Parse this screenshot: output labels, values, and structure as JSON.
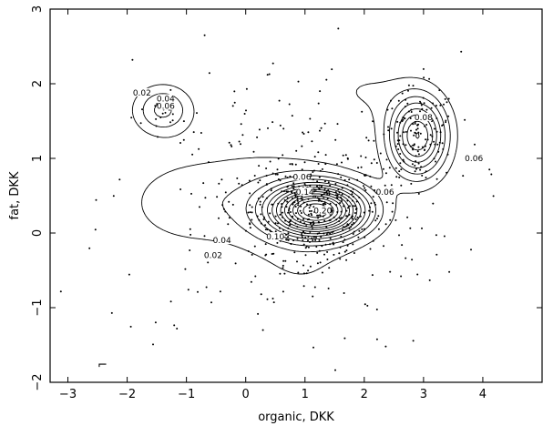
{
  "chart_data": {
    "type": "scatter",
    "title": "",
    "xlabel": "organic, DKK",
    "ylabel": "fat, DKK",
    "xlim": [
      -3.3,
      5.0
    ],
    "ylim": [
      -2.0,
      3.0
    ],
    "xticks": [
      "-3",
      "-2",
      "-1",
      "0",
      "1",
      "2",
      "3",
      "4"
    ],
    "yticks": [
      "-2",
      "-1",
      "0",
      "1",
      "2",
      "3"
    ],
    "grid": false,
    "legend": "none",
    "overlay": "kernel density contours",
    "modes": [
      {
        "x": 1.2,
        "y": 0.3,
        "peak_density": "0.28"
      },
      {
        "x": 2.9,
        "y": 1.3,
        "peak_density": "0.16"
      },
      {
        "x": -1.4,
        "y": 1.65,
        "peak_density": "0.06"
      }
    ],
    "contour_labels": [
      {
        "text": "0.02",
        "x": -1.75,
        "y": 1.88
      },
      {
        "text": "0.04",
        "x": -1.35,
        "y": 1.8
      },
      {
        "text": "0.06",
        "x": -1.35,
        "y": 1.7
      },
      {
        "text": "0.02",
        "x": -0.55,
        "y": -0.3
      },
      {
        "text": "0.04",
        "x": -0.4,
        "y": -0.1
      },
      {
        "text": "0.06",
        "x": 0.95,
        "y": 0.75
      },
      {
        "text": "0.10",
        "x": 0.5,
        "y": -0.05
      },
      {
        "text": "0.06",
        "x": 2.35,
        "y": 0.55
      },
      {
        "text": "0.08",
        "x": 3.0,
        "y": 1.55
      },
      {
        "text": "0.06",
        "x": 3.85,
        "y": 1.0
      },
      {
        "text": "0.14",
        "x": 1.0,
        "y": 0.55
      },
      {
        "text": "0.20",
        "x": 1.3,
        "y": 0.3
      }
    ],
    "corner_mark": "⌐",
    "scatter_clusters": [
      {
        "cx": 1.2,
        "cy": 0.3,
        "sx": 0.55,
        "sy": 0.32,
        "n": 380
      },
      {
        "cx": 2.9,
        "cy": 1.3,
        "sx": 0.33,
        "sy": 0.32,
        "n": 140
      },
      {
        "cx": -1.4,
        "cy": 1.65,
        "sx": 0.15,
        "sy": 0.09,
        "n": 14
      },
      {
        "cx": 0.6,
        "cy": 0.4,
        "sx": 1.5,
        "sy": 1.0,
        "n": 260
      }
    ]
  }
}
